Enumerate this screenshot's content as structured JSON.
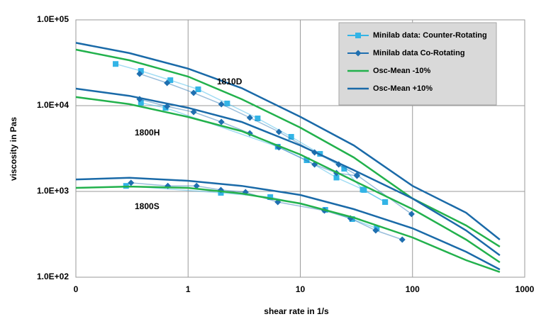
{
  "chart_data": {
    "type": "line",
    "x_label": "shear rate  in 1/s",
    "y_label": "viscosity in Pas",
    "xscale": "log",
    "yscale": "log",
    "grid": true,
    "legend": "top-right",
    "xlim": [
      0.1,
      1000
    ],
    "xticks": [
      {
        "value": 0.1,
        "label": "0"
      },
      1,
      10,
      100,
      1000
    ],
    "ylim": [
      100,
      100000
    ],
    "yticks": [
      {
        "value": 100,
        "label": "1.0E+02"
      },
      {
        "value": 1000,
        "label": "1.0E+03"
      },
      {
        "value": 10000,
        "label": "1.0E+04"
      },
      {
        "value": 100000,
        "label": "1.0E+05"
      }
    ],
    "annotations": [
      {
        "text": "1810D"
      },
      {
        "text": "1800H"
      },
      {
        "text": "1800S"
      }
    ],
    "series": [
      {
        "name": "Minilab data: Counter-Rotating",
        "color": "#33b4e6",
        "marker": "square",
        "x": [
          0.226,
          0.38,
          0.695,
          1.23,
          2.23,
          4.17,
          8.3,
          15,
          24.6,
          36,
          57,
          null,
          0.38,
          0.63,
          6.3,
          11.4,
          21,
          37,
          57,
          null,
          0.28,
          1.96,
          5.4,
          16.7,
          29,
          48
        ],
        "values": [
          30600,
          25400,
          19800,
          15500,
          10600,
          7100,
          4330,
          2740,
          1840,
          1050,
          752,
          null,
          10800,
          9430,
          3320,
          2310,
          1450,
          1040,
          752,
          null,
          1160,
          963,
          859,
          610,
          476,
          372
        ]
      },
      {
        "name": "Minilab data Co-Rotating",
        "color": "#1f6fb0",
        "marker": "diamond",
        "x": [
          0.37,
          0.65,
          1.12,
          1.98,
          3.55,
          6.45,
          13.4,
          22,
          32,
          98,
          null,
          0.37,
          0.65,
          1.12,
          1.98,
          3.55,
          6.45,
          13.4,
          21,
          32,
          null,
          0.31,
          0.66,
          1.19,
          1.96,
          3.25,
          6.3,
          16.4,
          28,
          47,
          81
        ],
        "values": [
          23500,
          18400,
          14100,
          10400,
          7230,
          4950,
          2850,
          2060,
          1550,
          545,
          null,
          11900,
          9800,
          8430,
          6450,
          4760,
          3260,
          2060,
          1640,
          1520,
          null,
          1260,
          1160,
          1160,
          1040,
          980,
          752,
          598,
          485,
          351,
          274
        ]
      },
      {
        "name": "Osc-Mean -10%",
        "color": "#22b14c",
        "marker": "none",
        "x": [
          0.1,
          0.3,
          1,
          3,
          10,
          30,
          100,
          300,
          600,
          null,
          0.1,
          0.3,
          1,
          3,
          10,
          30,
          100,
          300,
          600,
          null,
          0.1,
          0.3,
          1,
          3,
          10,
          30,
          100,
          300,
          600
        ],
        "values": [
          45000,
          33800,
          21800,
          11900,
          5540,
          2490,
          826,
          401,
          227,
          null,
          12600,
          10400,
          7380,
          5040,
          2690,
          1330,
          622,
          274,
          149,
          null,
          1100,
          1140,
          1100,
          945,
          724,
          495,
          290,
          158,
          115
        ]
      },
      {
        "name": "Osc-Mean +10%",
        "color": "#1a6aa8",
        "marker": "none",
        "x": [
          0.1,
          0.3,
          1,
          3,
          10,
          30,
          100,
          300,
          600,
          null,
          0.1,
          0.3,
          1,
          3,
          10,
          30,
          100,
          300,
          600,
          null,
          0.1,
          0.3,
          1,
          3,
          10,
          30,
          100,
          300,
          600
        ],
        "values": [
          54000,
          41000,
          27000,
          16000,
          7400,
          3440,
          1160,
          565,
          274,
          null,
          15800,
          13000,
          9430,
          6460,
          3440,
          1770,
          826,
          351,
          180,
          null,
          1380,
          1440,
          1330,
          1160,
          910,
          622,
          372,
          198,
          123
        ]
      }
    ]
  }
}
